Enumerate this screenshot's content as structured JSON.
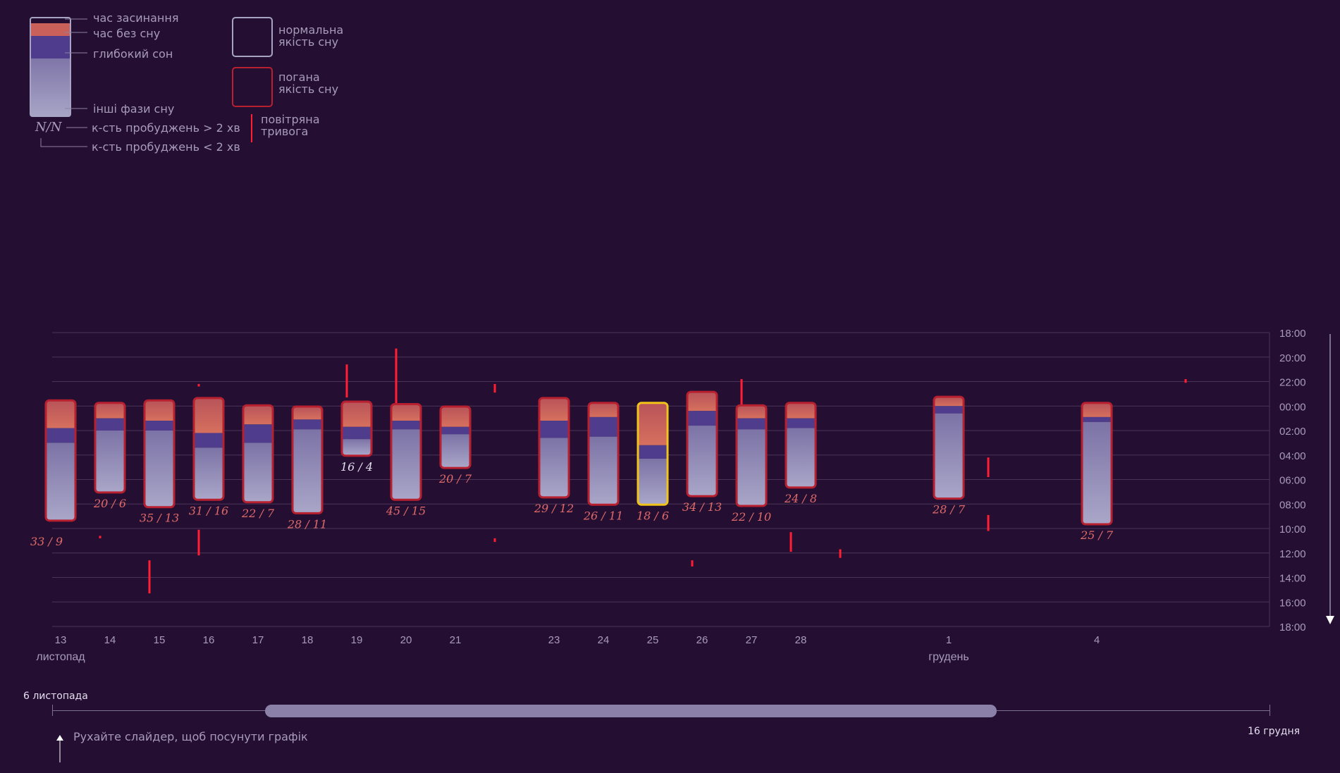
{
  "legend": {
    "sleep_onset": "час засинання",
    "awake_time": "час без сну",
    "deep_sleep": "глибокий сон",
    "other_phases": "інші фази сну",
    "fraction_symbol": "N/N",
    "awakenings_long": "к-сть пробуджень > 2 хв",
    "awakenings_short": "к-сть пробуджень < 2 хв",
    "normal_quality_line1": "нормальна",
    "normal_quality_line2": "якість сну",
    "bad_quality_line1": "погана",
    "bad_quality_line2": "якість сну",
    "air_raid_line1": "повітряна",
    "air_raid_line2": "тривога"
  },
  "colors": {
    "background": "#240f33",
    "sleep_onset": "#c9605a",
    "deep_sleep": "#4f3c8c",
    "other_phases": "#8f88b3",
    "bad_border": "#b8202f",
    "normal_border": "#a6a3c4",
    "selected_border": "#f0c419",
    "alarm": "#ff1e32",
    "grid": "#4a3558"
  },
  "chart_data": {
    "type": "sleep-timeline",
    "y_axis": {
      "ticks": [
        "18:00",
        "20:00",
        "22:00",
        "00:00",
        "02:00",
        "04:00",
        "06:00",
        "08:00",
        "10:00",
        "12:00",
        "14:00",
        "16:00",
        "18:00"
      ],
      "range_hours_from_18": [
        0,
        24
      ]
    },
    "x_axis": {
      "day_range": [
        13,
        37
      ],
      "month_labels": [
        {
          "label": "листопад",
          "day": 13
        },
        {
          "label": "грудень",
          "day": 31
        }
      ]
    },
    "nights": [
      {
        "label": "13",
        "day": 13,
        "start": 5.6,
        "awake_end": 7.8,
        "deep_end": 9.0,
        "end": 15.3,
        "long": 33,
        "short": 9,
        "quality": "bad",
        "label_below_offset": 1.0
      },
      {
        "label": "14",
        "day": 14,
        "start": 5.8,
        "awake_end": 7.0,
        "deep_end": 8.0,
        "end": 13.0,
        "long": 20,
        "short": 6,
        "quality": "bad"
      },
      {
        "label": "15",
        "day": 15,
        "start": 5.6,
        "awake_end": 7.2,
        "deep_end": 8.0,
        "end": 14.2,
        "long": 35,
        "short": 13,
        "quality": "bad"
      },
      {
        "label": "16",
        "day": 16,
        "start": 5.4,
        "awake_end": 8.2,
        "deep_end": 9.4,
        "end": 13.6,
        "long": 31,
        "short": 16,
        "quality": "bad"
      },
      {
        "label": "17",
        "day": 17,
        "start": 6.0,
        "awake_end": 7.5,
        "deep_end": 9.0,
        "end": 13.8,
        "long": 22,
        "short": 7,
        "quality": "bad"
      },
      {
        "label": "18",
        "day": 18,
        "start": 6.1,
        "awake_end": 7.1,
        "deep_end": 7.9,
        "end": 14.7,
        "long": 28,
        "short": 11,
        "quality": "bad"
      },
      {
        "label": "19",
        "day": 19,
        "start": 5.7,
        "awake_end": 7.7,
        "deep_end": 8.7,
        "end": 10.0,
        "long": 16,
        "short": 4,
        "quality": "bad"
      },
      {
        "label": "20",
        "day": 20,
        "start": 5.9,
        "awake_end": 7.2,
        "deep_end": 7.9,
        "end": 13.6,
        "long": 45,
        "short": 15,
        "quality": "bad"
      },
      {
        "label": "21",
        "day": 21,
        "start": 6.1,
        "awake_end": 7.7,
        "deep_end": 8.3,
        "end": 11.0,
        "long": 20,
        "short": 7,
        "quality": "bad"
      },
      {
        "label": "23",
        "day": 23,
        "start": 5.4,
        "awake_end": 7.2,
        "deep_end": 8.6,
        "end": 13.4,
        "long": 29,
        "short": 12,
        "quality": "bad"
      },
      {
        "label": "24",
        "day": 24,
        "start": 5.8,
        "awake_end": 6.9,
        "deep_end": 8.5,
        "end": 14.0,
        "long": 26,
        "short": 11,
        "quality": "bad"
      },
      {
        "label": "25",
        "day": 25,
        "start": 5.8,
        "awake_end": 9.2,
        "deep_end": 10.3,
        "end": 14.0,
        "long": 18,
        "short": 6,
        "quality": "selected"
      },
      {
        "label": "26",
        "day": 26,
        "start": 4.9,
        "awake_end": 6.4,
        "deep_end": 7.6,
        "end": 13.3,
        "long": 34,
        "short": 13,
        "quality": "bad"
      },
      {
        "label": "27",
        "day": 27,
        "start": 6.0,
        "awake_end": 7.0,
        "deep_end": 7.9,
        "end": 14.1,
        "long": 22,
        "short": 10,
        "quality": "bad"
      },
      {
        "label": "28",
        "day": 28,
        "start": 5.8,
        "awake_end": 7.0,
        "deep_end": 7.8,
        "end": 12.6,
        "long": 24,
        "short": 8,
        "quality": "bad"
      },
      {
        "label": "1",
        "day": 31,
        "start": 5.3,
        "awake_end": 6.0,
        "deep_end": 6.6,
        "end": 13.5,
        "long": 28,
        "short": 7,
        "quality": "bad"
      },
      {
        "label": "4",
        "day": 34,
        "start": 5.8,
        "awake_end": 6.9,
        "deep_end": 7.3,
        "end": 15.6,
        "long": 25,
        "short": 7,
        "quality": "bad"
      }
    ],
    "air_alarms": [
      {
        "day": 14.4,
        "start": 18.6,
        "end": 21.3
      },
      {
        "day": 13.4,
        "start": 16.6,
        "end": 16.8
      },
      {
        "day": 15.4,
        "start": 4.2,
        "end": 4.4
      },
      {
        "day": 15.4,
        "start": 16.1,
        "end": 18.2
      },
      {
        "day": 16.4,
        "start": 12.3,
        "end": 12.5
      },
      {
        "day": 17.4,
        "start": 9.2,
        "end": 9.8
      },
      {
        "day": 18.4,
        "start": 2.6,
        "end": 5.3
      },
      {
        "day": 18.4,
        "start": 8.1,
        "end": 8.9
      },
      {
        "day": 19.4,
        "start": 1.3,
        "end": 5.9
      },
      {
        "day": 21.4,
        "start": 4.2,
        "end": 4.9
      },
      {
        "day": 21.4,
        "start": 16.8,
        "end": 17.1
      },
      {
        "day": 25.4,
        "start": 6.0,
        "end": 12.6
      },
      {
        "day": 25.4,
        "start": 18.6,
        "end": 19.1
      },
      {
        "day": 26.4,
        "start": 3.8,
        "end": 7.2
      },
      {
        "day": 27.4,
        "start": 16.3,
        "end": 17.9
      },
      {
        "day": 28.4,
        "start": 17.7,
        "end": 18.4
      },
      {
        "day": 31.4,
        "start": 10.2,
        "end": 11.8
      },
      {
        "day": 31.4,
        "start": 14.9,
        "end": 16.2
      },
      {
        "day": 35.4,
        "start": 3.8,
        "end": 4.1
      }
    ]
  },
  "slider": {
    "start_label": "6 листопада",
    "end_label": "16 грудня",
    "hint": "Рухайте слайдер, щоб посунути графік"
  }
}
